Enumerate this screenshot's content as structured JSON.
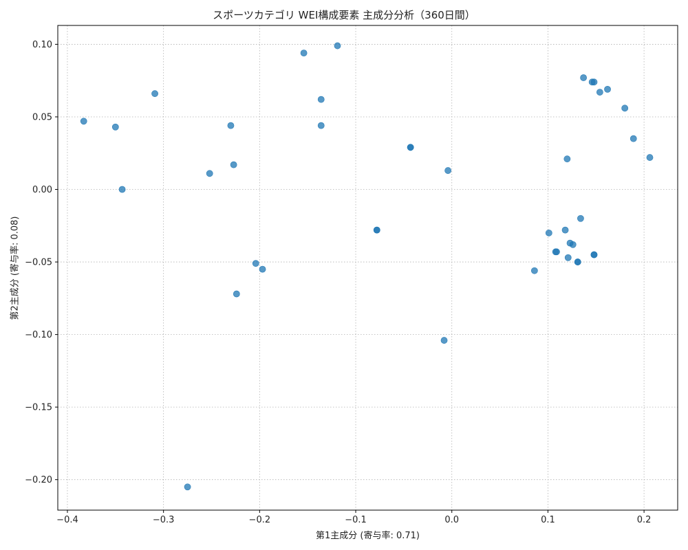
{
  "chart_data": {
    "type": "scatter",
    "title": "スポーツカテゴリ WEI構成要素 主成分分析（360日間）",
    "xlabel": "第1主成分 (寄与率: 0.71)",
    "ylabel": "第2主成分 (寄与率: 0.08)",
    "xlim": [
      -0.41,
      0.235
    ],
    "ylim": [
      -0.221,
      0.113
    ],
    "xticks": [
      -0.4,
      -0.3,
      -0.2,
      -0.1,
      0.0,
      0.1,
      0.2
    ],
    "xtick_labels": [
      "−0.4",
      "−0.3",
      "−0.2",
      "−0.1",
      "0.0",
      "0.1",
      "0.2"
    ],
    "yticks": [
      0.1,
      0.05,
      0.0,
      -0.05,
      -0.1,
      -0.15,
      -0.2
    ],
    "ytick_labels": [
      "0.10",
      "0.05",
      "0.00",
      "−0.05",
      "−0.10",
      "−0.15",
      "−0.20"
    ],
    "grid": true,
    "grid_style": "dotted",
    "marker_color": "#1f77b4",
    "marker_alpha": 0.75,
    "points": [
      {
        "x": -0.383,
        "y": 0.047
      },
      {
        "x": -0.35,
        "y": 0.043
      },
      {
        "x": -0.343,
        "y": 0.0
      },
      {
        "x": -0.309,
        "y": 0.066
      },
      {
        "x": -0.275,
        "y": -0.205
      },
      {
        "x": -0.252,
        "y": 0.011
      },
      {
        "x": -0.23,
        "y": 0.044
      },
      {
        "x": -0.227,
        "y": 0.017
      },
      {
        "x": -0.224,
        "y": -0.072
      },
      {
        "x": -0.204,
        "y": -0.051
      },
      {
        "x": -0.197,
        "y": -0.055
      },
      {
        "x": -0.154,
        "y": 0.094
      },
      {
        "x": -0.136,
        "y": 0.062
      },
      {
        "x": -0.136,
        "y": 0.044
      },
      {
        "x": -0.119,
        "y": 0.099
      },
      {
        "x": -0.078,
        "y": -0.028
      },
      {
        "x": -0.078,
        "y": -0.028
      },
      {
        "x": -0.043,
        "y": 0.029
      },
      {
        "x": -0.043,
        "y": 0.029
      },
      {
        "x": -0.008,
        "y": -0.104
      },
      {
        "x": -0.004,
        "y": 0.013
      },
      {
        "x": 0.086,
        "y": -0.056
      },
      {
        "x": 0.101,
        "y": -0.03
      },
      {
        "x": 0.108,
        "y": -0.043
      },
      {
        "x": 0.109,
        "y": -0.043
      },
      {
        "x": 0.118,
        "y": -0.028
      },
      {
        "x": 0.12,
        "y": 0.021
      },
      {
        "x": 0.121,
        "y": -0.047
      },
      {
        "x": 0.123,
        "y": -0.037
      },
      {
        "x": 0.126,
        "y": -0.038
      },
      {
        "x": 0.131,
        "y": -0.05
      },
      {
        "x": 0.131,
        "y": -0.05
      },
      {
        "x": 0.134,
        "y": -0.02
      },
      {
        "x": 0.137,
        "y": 0.077
      },
      {
        "x": 0.146,
        "y": 0.074
      },
      {
        "x": 0.148,
        "y": 0.074
      },
      {
        "x": 0.148,
        "y": -0.045
      },
      {
        "x": 0.148,
        "y": -0.045
      },
      {
        "x": 0.154,
        "y": 0.067
      },
      {
        "x": 0.162,
        "y": 0.069
      },
      {
        "x": 0.18,
        "y": 0.056
      },
      {
        "x": 0.189,
        "y": 0.035
      },
      {
        "x": 0.206,
        "y": 0.022
      }
    ]
  }
}
